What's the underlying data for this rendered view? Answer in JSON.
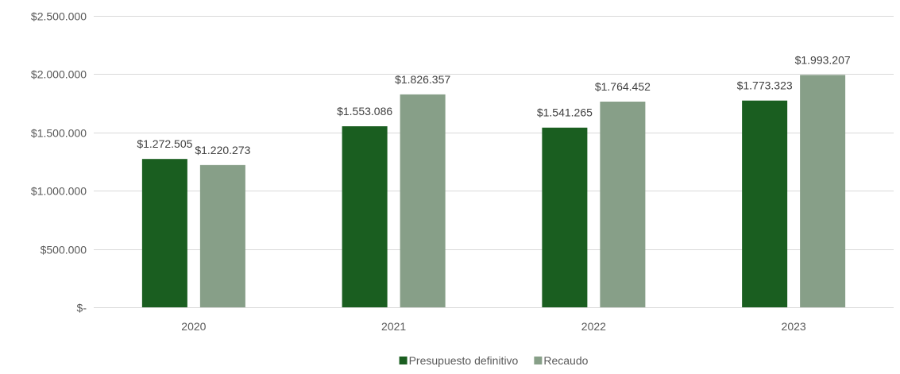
{
  "chart_data": {
    "type": "bar",
    "categories": [
      "2020",
      "2021",
      "2022",
      "2023"
    ],
    "series": [
      {
        "name": "Presupuesto definitivo",
        "color": "#1a5e20",
        "values": [
          1272505,
          1553086,
          1541265,
          1773323
        ],
        "labels": [
          "$1.272.505",
          "$1.553.086",
          "$1.541.265",
          "$1.773.323"
        ]
      },
      {
        "name": "Recaudo",
        "color": "#879f88",
        "values": [
          1220273,
          1826357,
          1764452,
          1993207
        ],
        "labels": [
          "$1.220.273",
          "$1.826.357",
          "$1.764.452",
          "$1.993.207"
        ]
      }
    ],
    "ylim": [
      0,
      2500000
    ],
    "yticks": [
      0,
      500000,
      1000000,
      1500000,
      2000000,
      2500000
    ],
    "ytick_labels": [
      "$-",
      "$500.000",
      "$1.000.000",
      "$1.500.000",
      "$2.000.000",
      "$2.500.000"
    ],
    "grid": true,
    "legend_position": "bottom-center",
    "title": "",
    "xlabel": "",
    "ylabel": ""
  }
}
